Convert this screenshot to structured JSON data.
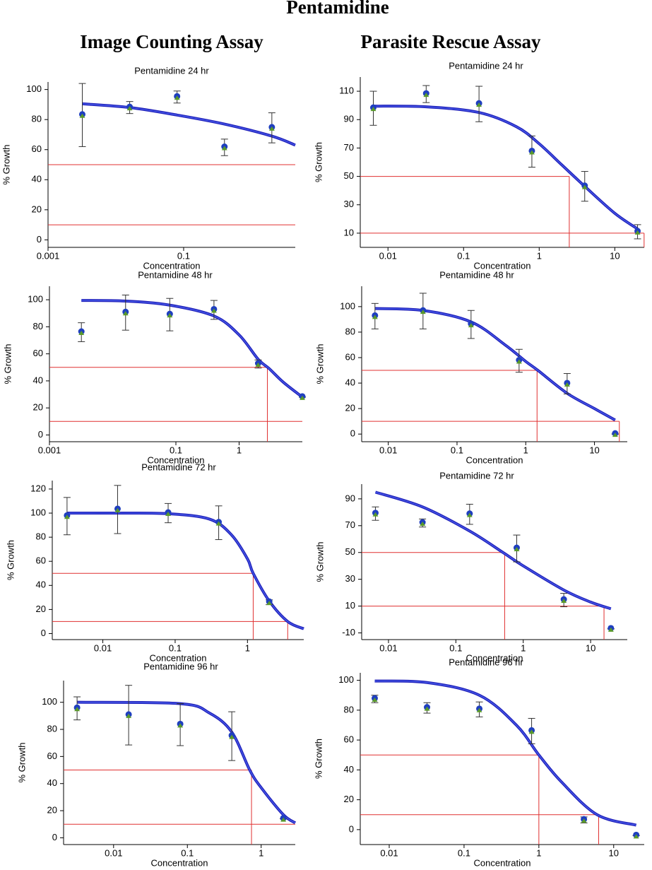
{
  "page": {
    "title": "Pentamidine",
    "columns": [
      "Image Counting Assay",
      "Parasite Rescue Assay"
    ]
  },
  "chart_data": [
    {
      "type": "dose-response",
      "title": "Pentamidine 24 hr",
      "x_label": "Concentration",
      "y_label": "% Growth",
      "x_log": true,
      "xlim": [
        0.001,
        4.43
      ],
      "xticks": [
        0.001,
        0.1
      ],
      "ylim": [
        -5,
        105
      ],
      "yticks": [
        0,
        20,
        40,
        60,
        80,
        100
      ],
      "x": [
        0.0032,
        0.016,
        0.08,
        0.4,
        2
      ],
      "values": [
        83,
        88,
        95,
        61.5,
        74.5
      ],
      "errors": [
        21,
        4,
        4,
        5.5,
        10
      ],
      "color": "#1f3fbf",
      "marker_color": "#5a9a2a",
      "fit": {
        "x": [
          0.0032,
          0.016,
          0.08,
          0.4,
          2,
          4.43
        ],
        "values": [
          90.5,
          88,
          83,
          77,
          69,
          63
        ],
        "color": "#2222bb"
      },
      "ref_color": "#e03030",
      "ref_lines": [
        {
          "y": 50
        },
        {
          "y": 10
        }
      ]
    },
    {
      "type": "dose-response",
      "title": "Pentamidine 24 hr",
      "x_label": "Concentration",
      "y_label": "% Growth",
      "x_log": true,
      "xlim": [
        0.0043,
        24.5
      ],
      "xticks": [
        0.01,
        0.1,
        1,
        10
      ],
      "ylim": [
        0,
        120
      ],
      "yticks": [
        10,
        30,
        50,
        70,
        90,
        110
      ],
      "x": [
        0.0064,
        0.032,
        0.16,
        0.8,
        4,
        20
      ],
      "values": [
        98,
        108,
        101,
        67.5,
        43,
        11
      ],
      "errors": [
        12,
        6,
        12.5,
        11,
        10.5,
        5
      ],
      "color": "#1f3fbf",
      "marker_color": "#5a9a2a",
      "fit": {
        "x": [
          0.0064,
          0.032,
          0.16,
          0.5,
          1,
          2,
          4,
          10,
          20
        ],
        "values": [
          99.5,
          99,
          95,
          85,
          73,
          58,
          43,
          24,
          13
        ],
        "color": "#2222bb"
      },
      "ref_color": "#e03030",
      "ref_lines": [
        {
          "y": 50,
          "x": 2.5
        },
        {
          "y": 10,
          "x": 24.4
        }
      ]
    },
    {
      "type": "dose-response",
      "title": "Pentamidine 48 hr",
      "x_label": "Concentration",
      "y_label": "% Growth",
      "x_log": true,
      "xlim": [
        0.001,
        10
      ],
      "xticks": [
        0.001,
        0.1,
        1
      ],
      "ylim": [
        -5,
        110
      ],
      "yticks": [
        0,
        20,
        40,
        60,
        80,
        100
      ],
      "x": [
        0.0032,
        0.016,
        0.08,
        0.4,
        2,
        10
      ],
      "values": [
        76,
        90.5,
        89,
        92.5,
        52.5,
        28
      ],
      "errors": [
        7,
        13,
        12,
        7,
        3,
        0
      ],
      "color": "#1f3fbf",
      "marker_color": "#5a9a2a",
      "fit": {
        "x": [
          0.0032,
          0.016,
          0.08,
          0.4,
          1,
          2,
          3,
          5,
          10
        ],
        "values": [
          99.5,
          99,
          96,
          88,
          74,
          56,
          49,
          39,
          28
        ],
        "color": "#2222bb"
      },
      "ref_color": "#e03030",
      "ref_lines": [
        {
          "y": 50,
          "x": 2.8
        },
        {
          "y": 10
        }
      ]
    },
    {
      "type": "dose-response",
      "title": "Pentamidine 48 hr",
      "x_label": "Concentration",
      "y_label": "% Growth",
      "x_log": true,
      "xlim": [
        0.0041,
        30
      ],
      "xticks": [
        0.01,
        0.1,
        1,
        10
      ],
      "ylim": [
        -6,
        116
      ],
      "yticks": [
        0,
        20,
        40,
        60,
        80,
        100
      ],
      "x": [
        0.0064,
        0.032,
        0.16,
        0.8,
        4,
        20
      ],
      "values": [
        92.5,
        96.5,
        86,
        57.5,
        39.5,
        0
      ],
      "errors": [
        10,
        14,
        11,
        9,
        8,
        0
      ],
      "color": "#1f3fbf",
      "marker_color": "#5a9a2a",
      "fit": {
        "x": [
          0.0064,
          0.032,
          0.16,
          0.5,
          1,
          1.5,
          4,
          10,
          20
        ],
        "values": [
          98.5,
          97,
          88,
          70,
          57,
          50,
          32,
          20,
          11
        ],
        "color": "#2222bb"
      },
      "ref_color": "#e03030",
      "ref_lines": [
        {
          "y": 50,
          "x": 1.46
        },
        {
          "y": 10,
          "x": 23
        }
      ]
    },
    {
      "type": "dose-response",
      "title": "Pentamidine 72 hr",
      "x_label": "Concentration",
      "y_label": "% Growth",
      "x_log": true,
      "xlim": [
        0.002,
        6
      ],
      "xticks": [
        0.01,
        0.1,
        1
      ],
      "ylim": [
        -5,
        127
      ],
      "yticks": [
        0,
        20,
        40,
        60,
        80,
        100,
        120
      ],
      "x": [
        0.0032,
        0.016,
        0.08,
        0.4,
        2
      ],
      "values": [
        97.5,
        103,
        100,
        92,
        26
      ],
      "errors": [
        15.5,
        20,
        8,
        14,
        2
      ],
      "color": "#1f3fbf",
      "marker_color": "#5a9a2a",
      "fit": {
        "x": [
          0.0032,
          0.016,
          0.08,
          0.3,
          0.6,
          1,
          1.2,
          2,
          3.6,
          6
        ],
        "values": [
          100,
          100,
          99.5,
          95,
          82,
          62,
          50,
          27,
          10,
          4
        ],
        "color": "#2222bb"
      },
      "ref_color": "#e03030",
      "ref_lines": [
        {
          "y": 50,
          "x": 1.2
        },
        {
          "y": 10,
          "x": 3.6
        }
      ]
    },
    {
      "type": "dose-response",
      "title": "Pentamidine 72 hr",
      "x_label": "Concentration",
      "y_label": "% Growth",
      "x_log": true,
      "xlim": [
        0.004,
        35
      ],
      "xticks": [
        0.01,
        0.1,
        1,
        10
      ],
      "ylim": [
        -15,
        101
      ],
      "yticks": [
        -10,
        10,
        30,
        50,
        70,
        90
      ],
      "x": [
        0.0064,
        0.032,
        0.16,
        0.8,
        4,
        20
      ],
      "values": [
        79,
        72,
        78.5,
        53,
        14.5,
        -7
      ],
      "errors": [
        5,
        3,
        7.5,
        10,
        5,
        0
      ],
      "color": "#1f3fbf",
      "marker_color": "#5a9a2a",
      "fit": {
        "x": [
          0.0064,
          0.032,
          0.16,
          0.5,
          1,
          4,
          10,
          20
        ],
        "values": [
          95,
          84,
          66,
          50,
          40,
          22,
          13,
          8
        ],
        "color": "#2222bb"
      },
      "ref_color": "#e03030",
      "ref_lines": [
        {
          "y": 50,
          "x": 0.53
        },
        {
          "y": 10,
          "x": 15.8
        }
      ]
    },
    {
      "type": "dose-response",
      "title": "Pentamidine 96 hr",
      "x_label": "Concentration",
      "y_label": "% Growth",
      "x_log": true,
      "xlim": [
        0.0021,
        2.9
      ],
      "xticks": [
        0.01,
        0.1,
        1
      ],
      "ylim": [
        -5,
        116
      ],
      "yticks": [
        0,
        20,
        40,
        60,
        80,
        100
      ],
      "x": [
        0.0032,
        0.016,
        0.08,
        0.4,
        2
      ],
      "values": [
        95.5,
        90.5,
        83.5,
        75,
        14
      ],
      "errors": [
        8.5,
        22,
        15.5,
        18,
        0
      ],
      "color": "#1f3fbf",
      "marker_color": "#5a9a2a",
      "fit": {
        "x": [
          0.0032,
          0.08,
          0.2,
          0.4,
          0.7,
          1,
          2,
          2.9
        ],
        "values": [
          100,
          99,
          92,
          78,
          50,
          37,
          17,
          11
        ],
        "color": "#2222bb"
      },
      "ref_color": "#e03030",
      "ref_lines": [
        {
          "y": 50,
          "x": 0.74
        },
        {
          "y": 10
        }
      ]
    },
    {
      "type": "dose-response",
      "title": "Pentamidine 96 hr",
      "x_label": "Concentration",
      "y_label": "% Growth",
      "x_log": true,
      "xlim": [
        0.0041,
        25.6
      ],
      "xticks": [
        0.01,
        0.1,
        1,
        10
      ],
      "ylim": [
        -10,
        105
      ],
      "yticks": [
        0,
        20,
        40,
        60,
        80,
        100
      ],
      "x": [
        0.0064,
        0.032,
        0.16,
        0.8,
        4,
        20
      ],
      "values": [
        87.5,
        81.5,
        80.5,
        66,
        6.5,
        -4
      ],
      "errors": [
        2.5,
        3.5,
        5,
        8.5,
        2,
        0
      ],
      "color": "#1f3fbf",
      "marker_color": "#5a9a2a",
      "fit": {
        "x": [
          0.0064,
          0.032,
          0.16,
          0.5,
          1,
          2,
          6,
          20
        ],
        "values": [
          99.5,
          98.5,
          90,
          70,
          50,
          32,
          10,
          3
        ],
        "color": "#2222bb"
      },
      "ref_color": "#e03030",
      "ref_lines": [
        {
          "y": 50,
          "x": 1
        },
        {
          "y": 10,
          "x": 6.3
        }
      ]
    }
  ]
}
